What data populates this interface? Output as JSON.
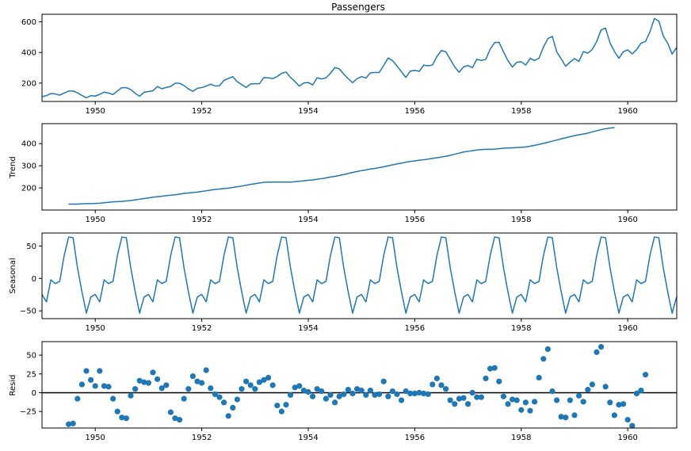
{
  "chart_data": [
    {
      "type": "line",
      "key": "observed",
      "title": "Passengers",
      "ylabel": "",
      "xlim": [
        1949.0,
        1960.92
      ],
      "ylim": [
        80,
        650
      ],
      "xticks": [
        1950,
        1952,
        1954,
        1956,
        1958,
        1960
      ],
      "xtick_labels": [
        "1950",
        "1952",
        "1954",
        "1956",
        "1958",
        "1960"
      ],
      "yticks": [
        200,
        400,
        600
      ],
      "ytick_labels": [
        "200",
        "400",
        "600"
      ],
      "x_start": 1949.0,
      "x_step": 0.0833333,
      "values": [
        112,
        118,
        132,
        129,
        121,
        135,
        148,
        148,
        136,
        119,
        104,
        118,
        115,
        126,
        141,
        135,
        125,
        149,
        170,
        170,
        158,
        133,
        114,
        140,
        145,
        150,
        178,
        163,
        172,
        178,
        199,
        199,
        184,
        162,
        146,
        166,
        171,
        180,
        193,
        181,
        183,
        218,
        230,
        242,
        209,
        191,
        172,
        194,
        196,
        196,
        236,
        235,
        229,
        243,
        264,
        272,
        237,
        211,
        180,
        201,
        204,
        188,
        235,
        227,
        234,
        264,
        302,
        293,
        259,
        229,
        203,
        229,
        242,
        233,
        267,
        269,
        270,
        315,
        364,
        347,
        312,
        274,
        237,
        278,
        284,
        277,
        317,
        313,
        318,
        374,
        413,
        405,
        355,
        306,
        271,
        306,
        315,
        301,
        356,
        348,
        355,
        422,
        465,
        467,
        404,
        347,
        305,
        336,
        340,
        318,
        362,
        348,
        363,
        435,
        491,
        505,
        404,
        359,
        310,
        337,
        360,
        342,
        406,
        396,
        420,
        472,
        548,
        559,
        463,
        407,
        362,
        405,
        417,
        391,
        419,
        461,
        472,
        535,
        622,
        606,
        508,
        461,
        390,
        432
      ]
    },
    {
      "type": "line",
      "key": "trend",
      "title": "",
      "ylabel": "Trend",
      "xlim": [
        1949.0,
        1960.92
      ],
      "ylim": [
        100,
        490
      ],
      "xticks": [
        1950,
        1952,
        1954,
        1956,
        1958,
        1960
      ],
      "xtick_labels": [
        "1950",
        "1952",
        "1954",
        "1956",
        "1958",
        "1960"
      ],
      "yticks": [
        200,
        300,
        400
      ],
      "ytick_labels": [
        "200",
        "300",
        "400"
      ],
      "x_start": 1949.5,
      "x_step": 0.0833333,
      "values": [
        127,
        127,
        127,
        128,
        129,
        129,
        130,
        131,
        133,
        135,
        137,
        138,
        139,
        141,
        143,
        146,
        149,
        152,
        155,
        158,
        160,
        162,
        165,
        167,
        169,
        172,
        175,
        177,
        179,
        181,
        184,
        187,
        190,
        193,
        195,
        197,
        199,
        202,
        205,
        208,
        212,
        216,
        219,
        222,
        225,
        226,
        226,
        226,
        226,
        226,
        226,
        228,
        230,
        232,
        234,
        236,
        239,
        242,
        245,
        249,
        252,
        256,
        260,
        265,
        270,
        274,
        278,
        281,
        285,
        288,
        292,
        295,
        300,
        304,
        308,
        312,
        316,
        319,
        322,
        325,
        327,
        330,
        333,
        336,
        339,
        343,
        347,
        352,
        357,
        362,
        365,
        368,
        371,
        373,
        374,
        374,
        375,
        377,
        379,
        380,
        381,
        382,
        383,
        385,
        388,
        392,
        396,
        401,
        406,
        411,
        416,
        421,
        426,
        431,
        436,
        440,
        443,
        447,
        453,
        458,
        463,
        467,
        470,
        473
      ]
    },
    {
      "type": "line",
      "key": "seasonal",
      "title": "",
      "ylabel": "Seasonal",
      "xlim": [
        1949.0,
        1960.92
      ],
      "ylim": [
        -62,
        70
      ],
      "xticks": [
        1950,
        1952,
        1954,
        1956,
        1958,
        1960
      ],
      "xtick_labels": [
        "1950",
        "1952",
        "1954",
        "1956",
        "1958",
        "1960"
      ],
      "yticks": [
        -50,
        0,
        50
      ],
      "ytick_labels": [
        "−50",
        "0",
        "50"
      ],
      "x_start": 1949.0,
      "x_step": 0.0833333,
      "values_per_year": [
        -24.7,
        -36.2,
        -2.2,
        -8.0,
        -4.5,
        35.4,
        63.8,
        62.8,
        16.5,
        -20.6,
        -53.6,
        -28.6
      ],
      "n_years": 12
    },
    {
      "type": "scatter",
      "key": "resid",
      "title": "",
      "ylabel": "Resid",
      "xlim": [
        1949.0,
        1960.92
      ],
      "ylim": [
        -47,
        68
      ],
      "xticks": [
        1950,
        1952,
        1954,
        1956,
        1958,
        1960
      ],
      "xtick_labels": [
        "1950",
        "1952",
        "1954",
        "1956",
        "1958",
        "1960"
      ],
      "yticks": [
        -25,
        0,
        25,
        50
      ],
      "ytick_labels": [
        "−25",
        "0",
        "25",
        "50"
      ],
      "zero_line": true,
      "x_start": 1949.5,
      "x_step": 0.0833333,
      "values": [
        -42,
        -41,
        -8,
        11,
        29,
        17,
        9,
        29,
        9,
        8,
        -8,
        -25,
        -33,
        -34,
        -4,
        5,
        16,
        14,
        13,
        27,
        18,
        6,
        10,
        -26,
        -34,
        -36,
        -8,
        5,
        22,
        15,
        13,
        30,
        6,
        -2,
        -6,
        -13,
        -31,
        -20,
        -9,
        5,
        15,
        10,
        5,
        14,
        17,
        20,
        10,
        -17,
        -25,
        -16,
        -3,
        7,
        9,
        3,
        1,
        -5,
        5,
        2,
        -8,
        -3,
        -13,
        -5,
        -2,
        4,
        -1,
        5,
        3,
        -3,
        3,
        -3,
        -2,
        15,
        -5,
        2,
        -2,
        -10,
        2,
        -1,
        -1,
        0,
        -1,
        -2,
        11,
        19,
        10,
        5,
        -10,
        -15,
        -8,
        -7,
        -15,
        0,
        -6,
        -6,
        19,
        32,
        33,
        15,
        -5,
        -15,
        -9,
        -10,
        -23,
        -13,
        -24,
        -12,
        20,
        45,
        58,
        2,
        -10,
        -32,
        -33,
        -10,
        -30,
        -4,
        -12,
        4,
        11,
        54,
        61,
        8,
        -13,
        -30,
        -16,
        -15,
        -36,
        -44,
        -1,
        3,
        24
      ]
    }
  ]
}
